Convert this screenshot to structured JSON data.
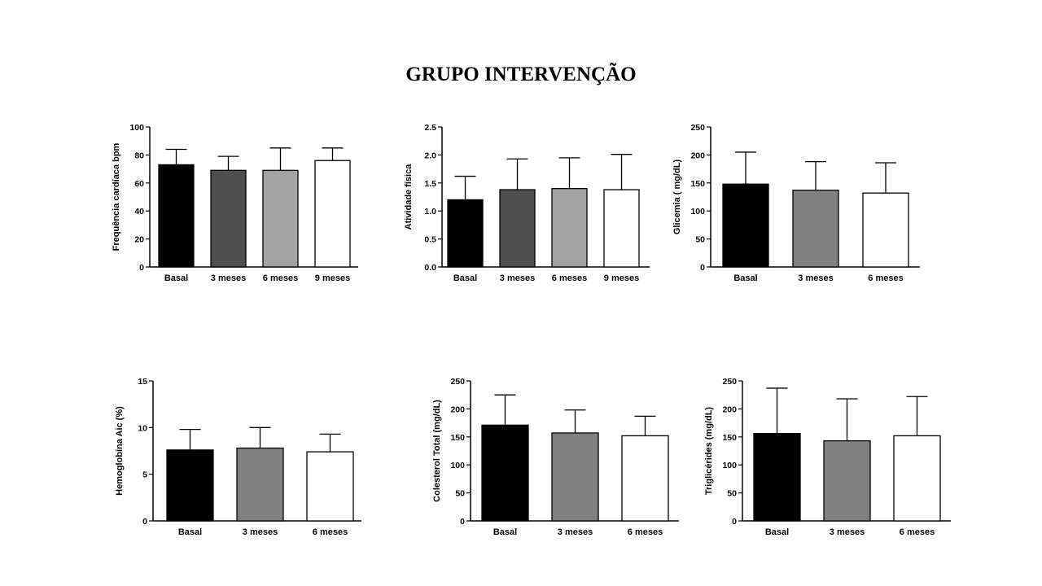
{
  "page": {
    "title": "GRUPO INTERVENÇÃO"
  },
  "chart_data": [
    {
      "type": "bar",
      "ylabel": "Frequência cardíaca bpm",
      "ylim": [
        0,
        100
      ],
      "yticks": [
        0,
        20,
        40,
        60,
        80,
        100
      ],
      "tick_labels": [
        "0",
        "20",
        "40",
        "60",
        "80",
        "100"
      ],
      "categories": [
        "Basal",
        "3 meses",
        "6 meses",
        "9 meses"
      ],
      "values": [
        73,
        69,
        69,
        76
      ],
      "errors": [
        11,
        10,
        16,
        9
      ],
      "colors": [
        "#000000",
        "#4f4f4f",
        "#a3a3a3",
        "#ffffff"
      ]
    },
    {
      "type": "bar",
      "ylabel": "Atividade física",
      "ylim": [
        0,
        2.5
      ],
      "yticks": [
        0,
        0.5,
        1,
        1.5,
        2,
        2.5
      ],
      "tick_labels": [
        "0.0",
        "0.5",
        "1.0",
        "1.5",
        "2.0",
        "2.5"
      ],
      "categories": [
        "Basal",
        "3 meses",
        "6 meses",
        "9 meses"
      ],
      "values": [
        1.2,
        1.38,
        1.4,
        1.38
      ],
      "errors": [
        0.42,
        0.55,
        0.55,
        0.63
      ],
      "colors": [
        "#000000",
        "#4f4f4f",
        "#a3a3a3",
        "#ffffff"
      ]
    },
    {
      "type": "bar",
      "ylabel": "Glicemia ( mg/dL)",
      "ylim": [
        0,
        250
      ],
      "yticks": [
        0,
        50,
        100,
        150,
        200,
        250
      ],
      "tick_labels": [
        "0",
        "50",
        "100",
        "150",
        "200",
        "250"
      ],
      "categories": [
        "Basal",
        "3 meses",
        "6 meses"
      ],
      "values": [
        148,
        137,
        132
      ],
      "errors": [
        57,
        51,
        54
      ],
      "colors": [
        "#000000",
        "#808080",
        "#ffffff"
      ]
    },
    {
      "type": "bar",
      "ylabel": "Hemoglobina Aic (%)",
      "ylim": [
        0,
        15
      ],
      "yticks": [
        0,
        5,
        10,
        15
      ],
      "tick_labels": [
        "0",
        "5",
        "10",
        "15"
      ],
      "categories": [
        "Basal",
        "3 meses",
        "6 meses"
      ],
      "values": [
        7.6,
        7.8,
        7.4
      ],
      "errors": [
        2.2,
        2.2,
        1.9
      ],
      "colors": [
        "#000000",
        "#808080",
        "#ffffff"
      ]
    },
    {
      "type": "bar",
      "ylabel": "Colesterol Total (mg/dL)",
      "ylim": [
        0,
        250
      ],
      "yticks": [
        0,
        50,
        100,
        150,
        200,
        250
      ],
      "tick_labels": [
        "0",
        "50",
        "100",
        "150",
        "200",
        "250"
      ],
      "categories": [
        "Basal",
        "3 meses",
        "6 meses"
      ],
      "values": [
        171,
        157,
        152
      ],
      "errors": [
        54,
        41,
        35
      ],
      "colors": [
        "#000000",
        "#808080",
        "#ffffff"
      ]
    },
    {
      "type": "bar",
      "ylabel": "Triglicérides (mg/dL)",
      "ylim": [
        0,
        250
      ],
      "yticks": [
        0,
        50,
        100,
        150,
        200,
        250
      ],
      "tick_labels": [
        "0",
        "50",
        "100",
        "150",
        "200",
        "250"
      ],
      "categories": [
        "Basal",
        "3 meses",
        "6 meses"
      ],
      "values": [
        156,
        143,
        152
      ],
      "errors": [
        81,
        75,
        70
      ],
      "colors": [
        "#000000",
        "#808080",
        "#ffffff"
      ]
    }
  ]
}
